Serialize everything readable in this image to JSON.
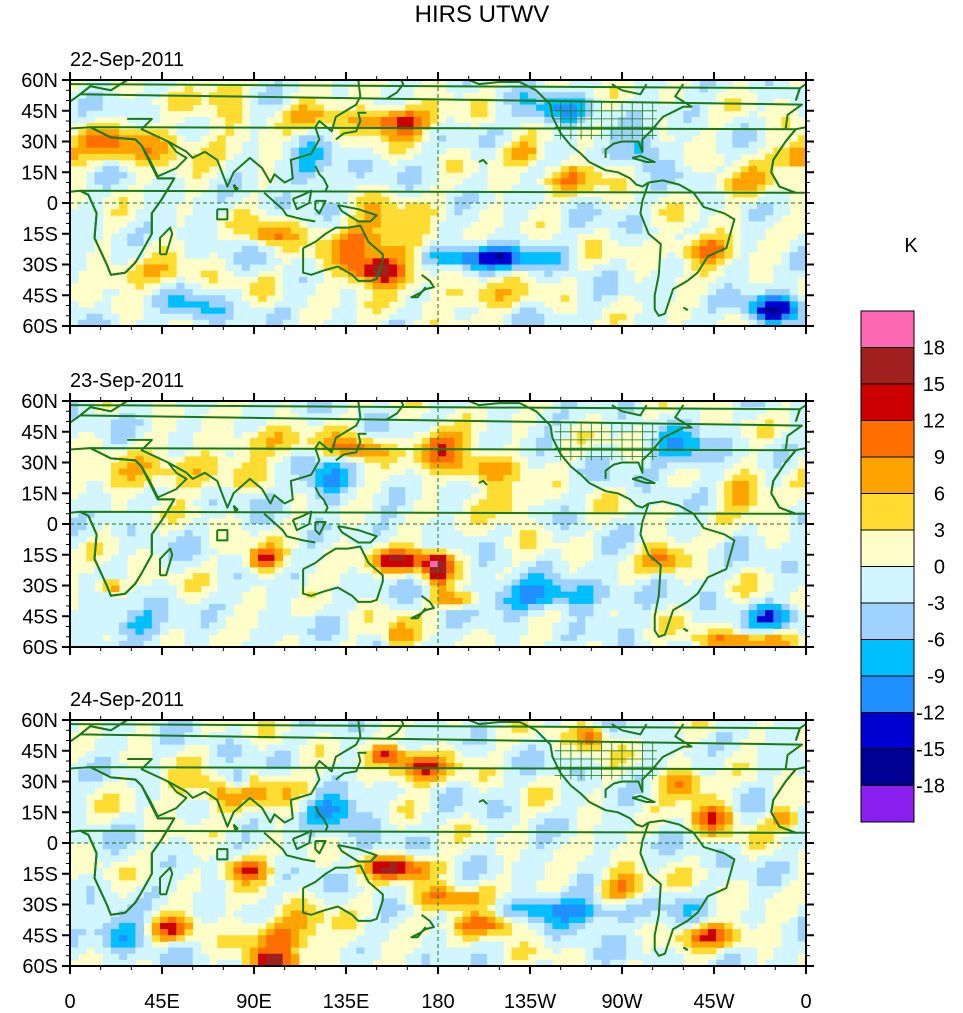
{
  "chart_data": {
    "type": "heatmap",
    "title": "HIRS UTWV",
    "units_label": "K",
    "projection": "cylindrical-equidistant",
    "xlim_lon": [
      0,
      360
    ],
    "ylim_lat": [
      -60,
      60
    ],
    "x_ticks": [
      {
        "lon": 0,
        "label": "0"
      },
      {
        "lon": 45,
        "label": "45E"
      },
      {
        "lon": 90,
        "label": "90E"
      },
      {
        "lon": 135,
        "label": "135E"
      },
      {
        "lon": 180,
        "label": "180"
      },
      {
        "lon": 225,
        "label": "135W"
      },
      {
        "lon": 270,
        "label": "90W"
      },
      {
        "lon": 315,
        "label": "45W"
      },
      {
        "lon": 360,
        "label": "0"
      }
    ],
    "y_ticks": [
      {
        "lat": 60,
        "label": "60N"
      },
      {
        "lat": 45,
        "label": "45N"
      },
      {
        "lat": 30,
        "label": "30N"
      },
      {
        "lat": 15,
        "label": "15N"
      },
      {
        "lat": 0,
        "label": "0"
      },
      {
        "lat": -15,
        "label": "15S"
      },
      {
        "lat": -30,
        "label": "30S"
      },
      {
        "lat": -45,
        "label": "45S"
      },
      {
        "lat": -60,
        "label": "60S"
      }
    ],
    "reference_lines": {
      "equator_lat": 0,
      "dateline_lon": 180,
      "style": "dashed",
      "color": "#1a7a1a"
    },
    "coastline_color": "#1a7a1a",
    "colorbar": {
      "levels": [
        -18,
        -15,
        -12,
        -9,
        -6,
        -3,
        0,
        3,
        6,
        9,
        12,
        15,
        18
      ],
      "colors": [
        "#8a1ff0",
        "#000093",
        "#0000d0",
        "#1e90ff",
        "#00bfff",
        "#a0d2ff",
        "#d1f6ff",
        "#fffec8",
        "#ffdc32",
        "#ffa300",
        "#ff6e00",
        "#cc0000",
        "#a02020",
        "#ff69b4"
      ],
      "labels": [
        "-18",
        "-15",
        "-12",
        "-9",
        "-6",
        "-3",
        "0",
        "3",
        "6",
        "9",
        "12",
        "15",
        "18"
      ],
      "orientation": "vertical",
      "placement": "right"
    },
    "panels": [
      {
        "label": "22-Sep-2011",
        "anomalies": [
          {
            "lon": 160,
            "lat": 40,
            "value": 14,
            "slon": 14,
            "slat": 5
          },
          {
            "lon": 150,
            "lat": -22,
            "value": 10,
            "slon": 18,
            "slat": 14
          },
          {
            "lon": 150,
            "lat": -33,
            "value": 12,
            "slon": 8,
            "slat": 4
          },
          {
            "lon": 98,
            "lat": -15,
            "value": 10,
            "slon": 8,
            "slat": 4
          },
          {
            "lon": 200,
            "lat": -27,
            "value": -14,
            "slon": 20,
            "slat": 4
          },
          {
            "lon": 345,
            "lat": -52,
            "value": -13,
            "slon": 10,
            "slat": 5
          },
          {
            "lon": 310,
            "lat": -22,
            "value": 12,
            "slon": 10,
            "slat": 5
          },
          {
            "lon": 30,
            "lat": 28,
            "value": 8,
            "slon": 30,
            "slat": 7
          },
          {
            "lon": 75,
            "lat": 55,
            "value": 7,
            "slon": 8,
            "slat": 8
          },
          {
            "lon": 120,
            "lat": 42,
            "value": 8,
            "slon": 10,
            "slat": 5
          },
          {
            "lon": 220,
            "lat": 25,
            "value": 8,
            "slon": 8,
            "slat": 4
          },
          {
            "lon": 245,
            "lat": 12,
            "value": 8,
            "slon": 12,
            "slat": 5
          },
          {
            "lon": 280,
            "lat": 27,
            "value": -9,
            "slon": 6,
            "slat": 6
          },
          {
            "lon": 240,
            "lat": 45,
            "value": -8,
            "slon": 12,
            "slat": 5
          },
          {
            "lon": 355,
            "lat": 22,
            "value": 9,
            "slon": 6,
            "slat": 4
          },
          {
            "lon": 200,
            "lat": -45,
            "value": 8,
            "slon": 12,
            "slat": 5
          },
          {
            "lon": 120,
            "lat": 15,
            "value": -7,
            "slon": 8,
            "slat": 10
          },
          {
            "lon": 40,
            "lat": -35,
            "value": 6,
            "slon": 16,
            "slat": 5
          },
          {
            "lon": 60,
            "lat": -52,
            "value": -7,
            "slon": 10,
            "slat": 5
          },
          {
            "lon": 330,
            "lat": 8,
            "value": 6,
            "slon": 12,
            "slat": 5
          }
        ]
      },
      {
        "label": "23-Sep-2011",
        "anomalies": [
          {
            "lon": 180,
            "lat": 38,
            "value": 13,
            "slon": 8,
            "slat": 6
          },
          {
            "lon": 165,
            "lat": -18,
            "value": 14,
            "slon": 15,
            "slat": 4
          },
          {
            "lon": 180,
            "lat": -22,
            "value": 13,
            "slon": 4,
            "slat": 6
          },
          {
            "lon": 95,
            "lat": -17,
            "value": 12,
            "slon": 7,
            "slat": 4
          },
          {
            "lon": 20,
            "lat": -30,
            "value": 13,
            "slon": 5,
            "slat": 3
          },
          {
            "lon": 190,
            "lat": -37,
            "value": 12,
            "slon": 8,
            "slat": 3
          },
          {
            "lon": 290,
            "lat": -17,
            "value": 11,
            "slon": 7,
            "slat": 5
          },
          {
            "lon": 200,
            "lat": 28,
            "value": 9,
            "slon": 12,
            "slat": 5
          },
          {
            "lon": 215,
            "lat": 10,
            "value": 8,
            "slon": 8,
            "slat": 6
          },
          {
            "lon": 330,
            "lat": 15,
            "value": 7,
            "slon": 8,
            "slat": 8
          },
          {
            "lon": 140,
            "lat": 37,
            "value": 11,
            "slon": 10,
            "slat": 4
          },
          {
            "lon": 230,
            "lat": -35,
            "value": -9,
            "slon": 25,
            "slat": 5
          },
          {
            "lon": 300,
            "lat": 35,
            "value": -9,
            "slon": 10,
            "slat": 6
          },
          {
            "lon": 95,
            "lat": 40,
            "value": 7,
            "slon": 15,
            "slat": 5
          },
          {
            "lon": 45,
            "lat": 25,
            "value": 7,
            "slon": 25,
            "slat": 6
          },
          {
            "lon": 345,
            "lat": -45,
            "value": -10,
            "slon": 8,
            "slat": 4
          },
          {
            "lon": 125,
            "lat": 20,
            "value": -8,
            "slon": 8,
            "slat": 8
          },
          {
            "lon": 330,
            "lat": -57,
            "value": 9,
            "slon": 20,
            "slat": 3
          },
          {
            "lon": 160,
            "lat": -55,
            "value": 9,
            "slon": 5,
            "slat": 5
          },
          {
            "lon": 30,
            "lat": -48,
            "value": -8,
            "slon": 10,
            "slat": 5
          }
        ]
      },
      {
        "label": "24-Sep-2011",
        "anomalies": [
          {
            "lon": 170,
            "lat": 37,
            "value": 13,
            "slon": 12,
            "slat": 5
          },
          {
            "lon": 160,
            "lat": -12,
            "value": 14,
            "slon": 12,
            "slat": 4
          },
          {
            "lon": 185,
            "lat": -27,
            "value": 11,
            "slon": 12,
            "slat": 4
          },
          {
            "lon": 205,
            "lat": -40,
            "value": 12,
            "slon": 12,
            "slat": 4
          },
          {
            "lon": 85,
            "lat": -13,
            "value": 12,
            "slon": 8,
            "slat": 4
          },
          {
            "lon": 105,
            "lat": -45,
            "value": 10,
            "slon": 15,
            "slat": 8
          },
          {
            "lon": 50,
            "lat": -42,
            "value": 12,
            "slon": 8,
            "slat": 4
          },
          {
            "lon": 270,
            "lat": -22,
            "value": 12,
            "slon": 8,
            "slat": 6
          },
          {
            "lon": 255,
            "lat": 52,
            "value": 12,
            "slon": 5,
            "slat": 5
          },
          {
            "lon": 315,
            "lat": 12,
            "value": 11,
            "slon": 8,
            "slat": 6
          },
          {
            "lon": 300,
            "lat": 28,
            "value": 10,
            "slon": 8,
            "slat": 5
          },
          {
            "lon": 350,
            "lat": 12,
            "value": 10,
            "slon": 5,
            "slat": 4
          },
          {
            "lon": 315,
            "lat": -45,
            "value": 11,
            "slon": 12,
            "slat": 4
          },
          {
            "lon": 250,
            "lat": -33,
            "value": -10,
            "slon": 25,
            "slat": 5
          },
          {
            "lon": 82,
            "lat": 30,
            "value": -13,
            "slon": 4,
            "slat": 4
          },
          {
            "lon": 80,
            "lat": 25,
            "value": 8,
            "slon": 25,
            "slat": 6
          },
          {
            "lon": 130,
            "lat": 15,
            "value": -9,
            "slon": 10,
            "slat": 8
          },
          {
            "lon": 155,
            "lat": 43,
            "value": 11,
            "slon": 6,
            "slat": 3
          },
          {
            "lon": 25,
            "lat": -45,
            "value": -8,
            "slon": 10,
            "slat": 6
          },
          {
            "lon": 100,
            "lat": -58,
            "value": 12,
            "slon": 8,
            "slat": 3
          }
        ]
      }
    ]
  }
}
